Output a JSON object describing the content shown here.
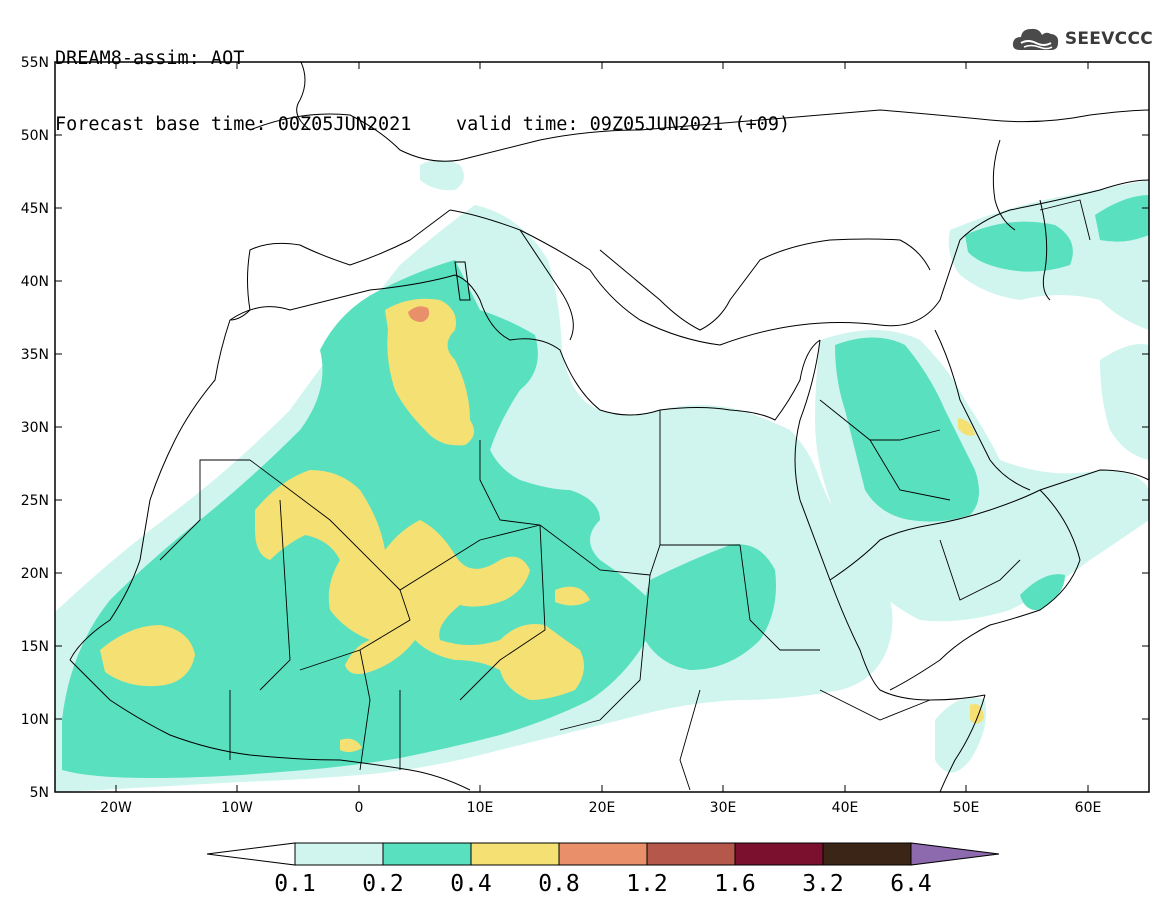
{
  "header": {
    "line1": "DREAM8-assim: AOT",
    "base_label": "Forecast base time: 00Z05JUN2021",
    "valid_label": "valid time: 09Z05JUN2021 (+09)"
  },
  "logo": {
    "text": "SEEVCCC",
    "icon": "cloud-icon"
  },
  "map": {
    "lat_labels": [
      "55N",
      "50N",
      "45N",
      "40N",
      "35N",
      "30N",
      "25N",
      "20N",
      "15N",
      "10N",
      "5N"
    ],
    "lon_labels": [
      "20W",
      "10W",
      "0",
      "10E",
      "20E",
      "30E",
      "40E",
      "50E",
      "60E"
    ]
  },
  "legend": {
    "values": [
      "0.1",
      "0.2",
      "0.4",
      "0.8",
      "1.2",
      "1.6",
      "3.2",
      "6.4"
    ],
    "colors": [
      "#ffffff",
      "#cff5ee",
      "#59e0bf",
      "#f5e173",
      "#e9906a",
      "#b5574a",
      "#7a0f2e",
      "#3b2517",
      "#8d6aae"
    ]
  }
}
